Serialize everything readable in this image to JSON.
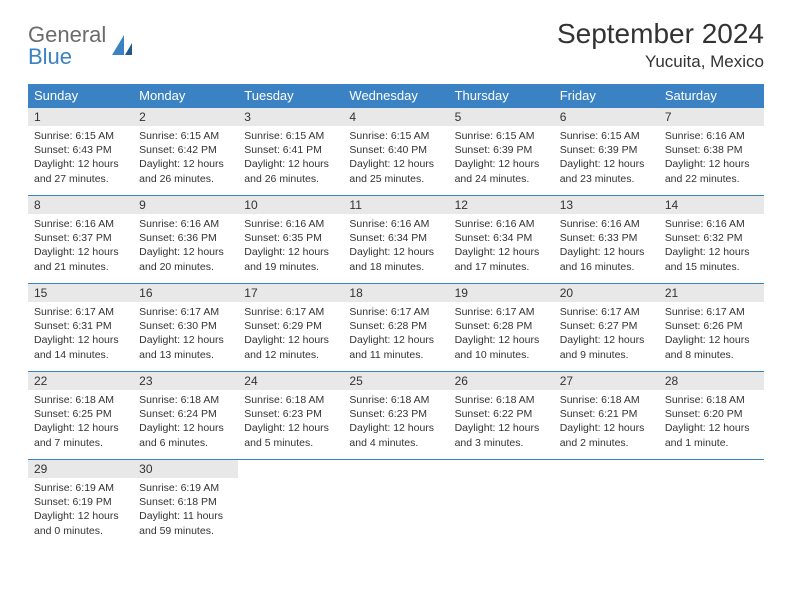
{
  "brand": {
    "name1": "General",
    "name2": "Blue"
  },
  "title": "September 2024",
  "location": "Yucuita, Mexico",
  "colors": {
    "header_bg": "#3b82c4",
    "header_text": "#ffffff",
    "daynum_bg": "#e8e8e8",
    "border": "#3b82c4",
    "text": "#333333",
    "logo_gray": "#6b6b6b",
    "logo_blue": "#3b82c4",
    "page_bg": "#ffffff"
  },
  "weekdays": [
    "Sunday",
    "Monday",
    "Tuesday",
    "Wednesday",
    "Thursday",
    "Friday",
    "Saturday"
  ],
  "days": [
    {
      "n": "1",
      "sr": "6:15 AM",
      "ss": "6:43 PM",
      "dl": "12 hours and 27 minutes."
    },
    {
      "n": "2",
      "sr": "6:15 AM",
      "ss": "6:42 PM",
      "dl": "12 hours and 26 minutes."
    },
    {
      "n": "3",
      "sr": "6:15 AM",
      "ss": "6:41 PM",
      "dl": "12 hours and 26 minutes."
    },
    {
      "n": "4",
      "sr": "6:15 AM",
      "ss": "6:40 PM",
      "dl": "12 hours and 25 minutes."
    },
    {
      "n": "5",
      "sr": "6:15 AM",
      "ss": "6:39 PM",
      "dl": "12 hours and 24 minutes."
    },
    {
      "n": "6",
      "sr": "6:15 AM",
      "ss": "6:39 PM",
      "dl": "12 hours and 23 minutes."
    },
    {
      "n": "7",
      "sr": "6:16 AM",
      "ss": "6:38 PM",
      "dl": "12 hours and 22 minutes."
    },
    {
      "n": "8",
      "sr": "6:16 AM",
      "ss": "6:37 PM",
      "dl": "12 hours and 21 minutes."
    },
    {
      "n": "9",
      "sr": "6:16 AM",
      "ss": "6:36 PM",
      "dl": "12 hours and 20 minutes."
    },
    {
      "n": "10",
      "sr": "6:16 AM",
      "ss": "6:35 PM",
      "dl": "12 hours and 19 minutes."
    },
    {
      "n": "11",
      "sr": "6:16 AM",
      "ss": "6:34 PM",
      "dl": "12 hours and 18 minutes."
    },
    {
      "n": "12",
      "sr": "6:16 AM",
      "ss": "6:34 PM",
      "dl": "12 hours and 17 minutes."
    },
    {
      "n": "13",
      "sr": "6:16 AM",
      "ss": "6:33 PM",
      "dl": "12 hours and 16 minutes."
    },
    {
      "n": "14",
      "sr": "6:16 AM",
      "ss": "6:32 PM",
      "dl": "12 hours and 15 minutes."
    },
    {
      "n": "15",
      "sr": "6:17 AM",
      "ss": "6:31 PM",
      "dl": "12 hours and 14 minutes."
    },
    {
      "n": "16",
      "sr": "6:17 AM",
      "ss": "6:30 PM",
      "dl": "12 hours and 13 minutes."
    },
    {
      "n": "17",
      "sr": "6:17 AM",
      "ss": "6:29 PM",
      "dl": "12 hours and 12 minutes."
    },
    {
      "n": "18",
      "sr": "6:17 AM",
      "ss": "6:28 PM",
      "dl": "12 hours and 11 minutes."
    },
    {
      "n": "19",
      "sr": "6:17 AM",
      "ss": "6:28 PM",
      "dl": "12 hours and 10 minutes."
    },
    {
      "n": "20",
      "sr": "6:17 AM",
      "ss": "6:27 PM",
      "dl": "12 hours and 9 minutes."
    },
    {
      "n": "21",
      "sr": "6:17 AM",
      "ss": "6:26 PM",
      "dl": "12 hours and 8 minutes."
    },
    {
      "n": "22",
      "sr": "6:18 AM",
      "ss": "6:25 PM",
      "dl": "12 hours and 7 minutes."
    },
    {
      "n": "23",
      "sr": "6:18 AM",
      "ss": "6:24 PM",
      "dl": "12 hours and 6 minutes."
    },
    {
      "n": "24",
      "sr": "6:18 AM",
      "ss": "6:23 PM",
      "dl": "12 hours and 5 minutes."
    },
    {
      "n": "25",
      "sr": "6:18 AM",
      "ss": "6:23 PM",
      "dl": "12 hours and 4 minutes."
    },
    {
      "n": "26",
      "sr": "6:18 AM",
      "ss": "6:22 PM",
      "dl": "12 hours and 3 minutes."
    },
    {
      "n": "27",
      "sr": "6:18 AM",
      "ss": "6:21 PM",
      "dl": "12 hours and 2 minutes."
    },
    {
      "n": "28",
      "sr": "6:18 AM",
      "ss": "6:20 PM",
      "dl": "12 hours and 1 minute."
    },
    {
      "n": "29",
      "sr": "6:19 AM",
      "ss": "6:19 PM",
      "dl": "12 hours and 0 minutes."
    },
    {
      "n": "30",
      "sr": "6:19 AM",
      "ss": "6:18 PM",
      "dl": "11 hours and 59 minutes."
    }
  ],
  "labels": {
    "sunrise": "Sunrise:",
    "sunset": "Sunset:",
    "daylight": "Daylight:"
  },
  "layout": {
    "start_weekday": 0,
    "cols": 7,
    "rows": 5
  }
}
